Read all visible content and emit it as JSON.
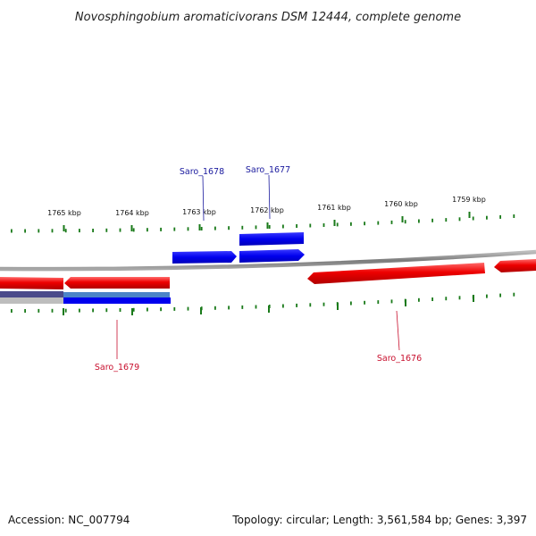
{
  "header": {
    "title": "Novosphingobium aromaticivorans DSM 12444, complete genome"
  },
  "footer": {
    "accession": "Accession: NC_007794",
    "summary": "Topology: circular; Length: 3,561,584 bp; Genes: 3,397"
  },
  "scale": {
    "ticks": [
      {
        "label": "1765 kbp"
      },
      {
        "label": "1764 kbp"
      },
      {
        "label": "1763 kbp"
      },
      {
        "label": "1762 kbp"
      },
      {
        "label": "1761 kbp"
      },
      {
        "label": "1760 kbp"
      },
      {
        "label": "1759 kbp"
      }
    ]
  },
  "genes": [
    {
      "id": "Saro_1678",
      "label": "Saro_1678",
      "strand": "+"
    },
    {
      "id": "Saro_1677",
      "label": "Saro_1677",
      "strand": "+"
    },
    {
      "id": "Saro_1679",
      "label": "Saro_1679",
      "strand": "-"
    },
    {
      "id": "Saro_1676",
      "label": "Saro_1676",
      "strand": "-"
    }
  ],
  "colors": {
    "forward_gene": "#0000ee",
    "reverse_gene": "#ee0000",
    "backbone": "#888888",
    "tick": "#1a7a1a"
  }
}
